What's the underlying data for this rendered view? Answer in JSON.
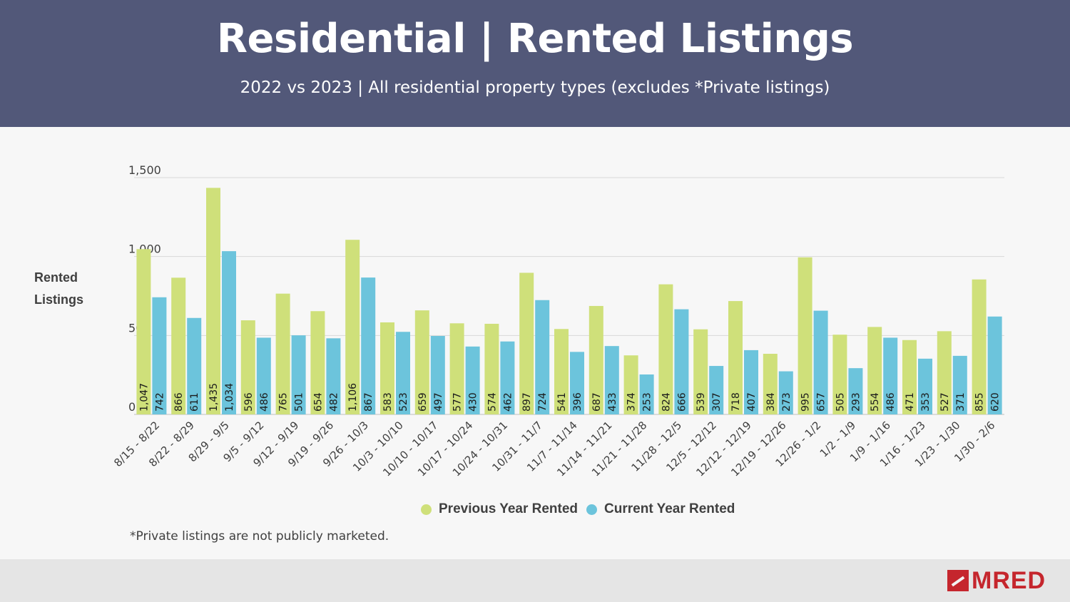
{
  "header": {
    "title": "Residential | Rented Listings",
    "subtitle": "2022 vs 2023 | All residential property types (excludes *Private listings)"
  },
  "footnote": "*Private listings are not publicly marketed.",
  "logo": {
    "text": "MRED"
  },
  "colors": {
    "header_bg": "#525879",
    "previous": "#cfe07a",
    "current": "#6cc4dc",
    "brand": "#c5262d"
  },
  "chart_data": {
    "type": "bar",
    "ylabel": "Rented Listings",
    "xlabel": "",
    "ylim": [
      0,
      1500
    ],
    "yticks": [
      "0",
      "500",
      "1,000",
      "1,500"
    ],
    "grid": true,
    "legend_position": "bottom",
    "categories": [
      "8/15 - 8/22",
      "8/22 - 8/29",
      "8/29 - 9/5",
      "9/5 - 9/12",
      "9/12 - 9/19",
      "9/19 - 9/26",
      "9/26 - 10/3",
      "10/3 - 10/10",
      "10/10 - 10/17",
      "10/17 - 10/24",
      "10/24 - 10/31",
      "10/31 - 11/7",
      "11/7 - 11/14",
      "11/14 - 11/21",
      "11/21 - 11/28",
      "11/28 - 12/5",
      "12/5 - 12/12",
      "12/12 - 12/19",
      "12/19 - 12/26",
      "12/26 - 1/2",
      "1/2 - 1/9",
      "1/9 - 1/16",
      "1/16 - 1/23",
      "1/23 - 1/30",
      "1/30 - 2/6"
    ],
    "series": [
      {
        "name": "Previous Year Rented",
        "values": [
          1047,
          866,
          1435,
          596,
          765,
          654,
          1106,
          583,
          659,
          577,
          574,
          897,
          541,
          687,
          374,
          824,
          539,
          718,
          384,
          995,
          505,
          554,
          471,
          527,
          855
        ],
        "labels": [
          "1,047",
          "866",
          "1,435",
          "596",
          "765",
          "654",
          "1,106",
          "583",
          "659",
          "577",
          "574",
          "897",
          "541",
          "687",
          "374",
          "824",
          "539",
          "718",
          "384",
          "995",
          "505",
          "554",
          "471",
          "527",
          "855"
        ]
      },
      {
        "name": "Current Year Rented",
        "values": [
          742,
          611,
          1034,
          486,
          501,
          482,
          867,
          523,
          497,
          430,
          462,
          724,
          396,
          433,
          253,
          666,
          307,
          407,
          273,
          657,
          293,
          486,
          353,
          371,
          620
        ],
        "labels": [
          "742",
          "611",
          "1,034",
          "486",
          "501",
          "482",
          "867",
          "523",
          "497",
          "430",
          "462",
          "724",
          "396",
          "433",
          "253",
          "666",
          "307",
          "407",
          "273",
          "657",
          "293",
          "486",
          "353",
          "371",
          "620"
        ]
      }
    ]
  }
}
